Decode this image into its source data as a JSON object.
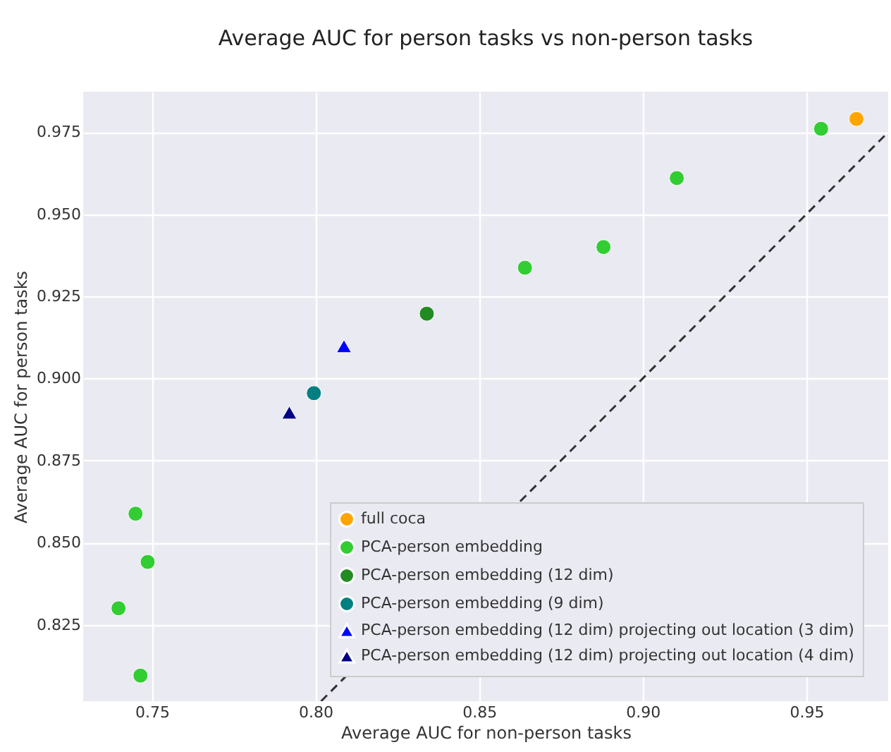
{
  "chart_data": {
    "type": "scatter",
    "title": "Average AUC for person tasks vs non-person tasks",
    "xlabel": "Average AUC for non-person tasks",
    "ylabel": "Average AUC for person tasks",
    "xlim": [
      0.729,
      0.975
    ],
    "ylim": [
      0.8017,
      0.9873
    ],
    "xticks": [
      0.75,
      {
        "value": 0.8,
        "label": "0.80"
      },
      {
        "value": 0.85,
        "label": "0.85"
      },
      {
        "value": 0.9,
        "label": "0.90"
      },
      0.95
    ],
    "yticks": [
      {
        "value": 0.825,
        "label": "0.825"
      },
      {
        "value": 0.85,
        "label": "0.850"
      },
      0.875,
      {
        "value": 0.9,
        "label": "0.900"
      },
      0.925,
      {
        "value": 0.95,
        "label": "0.950"
      },
      0.975
    ],
    "grid": true,
    "legend": "bottom right",
    "series": [
      {
        "name": "full coca",
        "color": "#ffa500",
        "marker": "circle",
        "x": [
          0.9653
        ],
        "values": [
          0.979
        ]
      },
      {
        "name": "PCA-person embedding",
        "color": "#32cd32",
        "marker": "circle",
        "x": [
          0.9545,
          0.9104,
          0.888,
          0.864,
          0.745,
          0.7487,
          0.7398,
          0.7465
        ],
        "values": [
          0.976,
          0.961,
          0.94,
          0.9337,
          0.8588,
          0.8441,
          0.83,
          0.8095
        ]
      },
      {
        "name": "PCA-person embedding (12 dim)",
        "color": "#228b22",
        "marker": "circle",
        "x": [
          0.834
        ],
        "values": [
          0.9197
        ]
      },
      {
        "name": "PCA-person embedding (9 dim)",
        "color": "#008080",
        "marker": "circle",
        "x": [
          0.7995
        ],
        "values": [
          0.8955
        ]
      },
      {
        "name": "PCA-person embedding (12 dim) projecting out location (3 dim)",
        "color": "#0000ff",
        "marker": "triangle",
        "x": [
          0.8087
        ],
        "values": [
          0.9098
        ]
      },
      {
        "name": "PCA-person embedding (12 dim) projecting out location (4 dim)",
        "color": "#000080",
        "marker": "triangle",
        "x": [
          0.792
        ],
        "values": [
          0.8896
        ]
      },
      {
        "type": "line",
        "color": "#333333",
        "line_style": "dashed",
        "x": [
          0.8017,
          0.975
        ],
        "values": [
          0.8017,
          0.975
        ]
      }
    ]
  }
}
